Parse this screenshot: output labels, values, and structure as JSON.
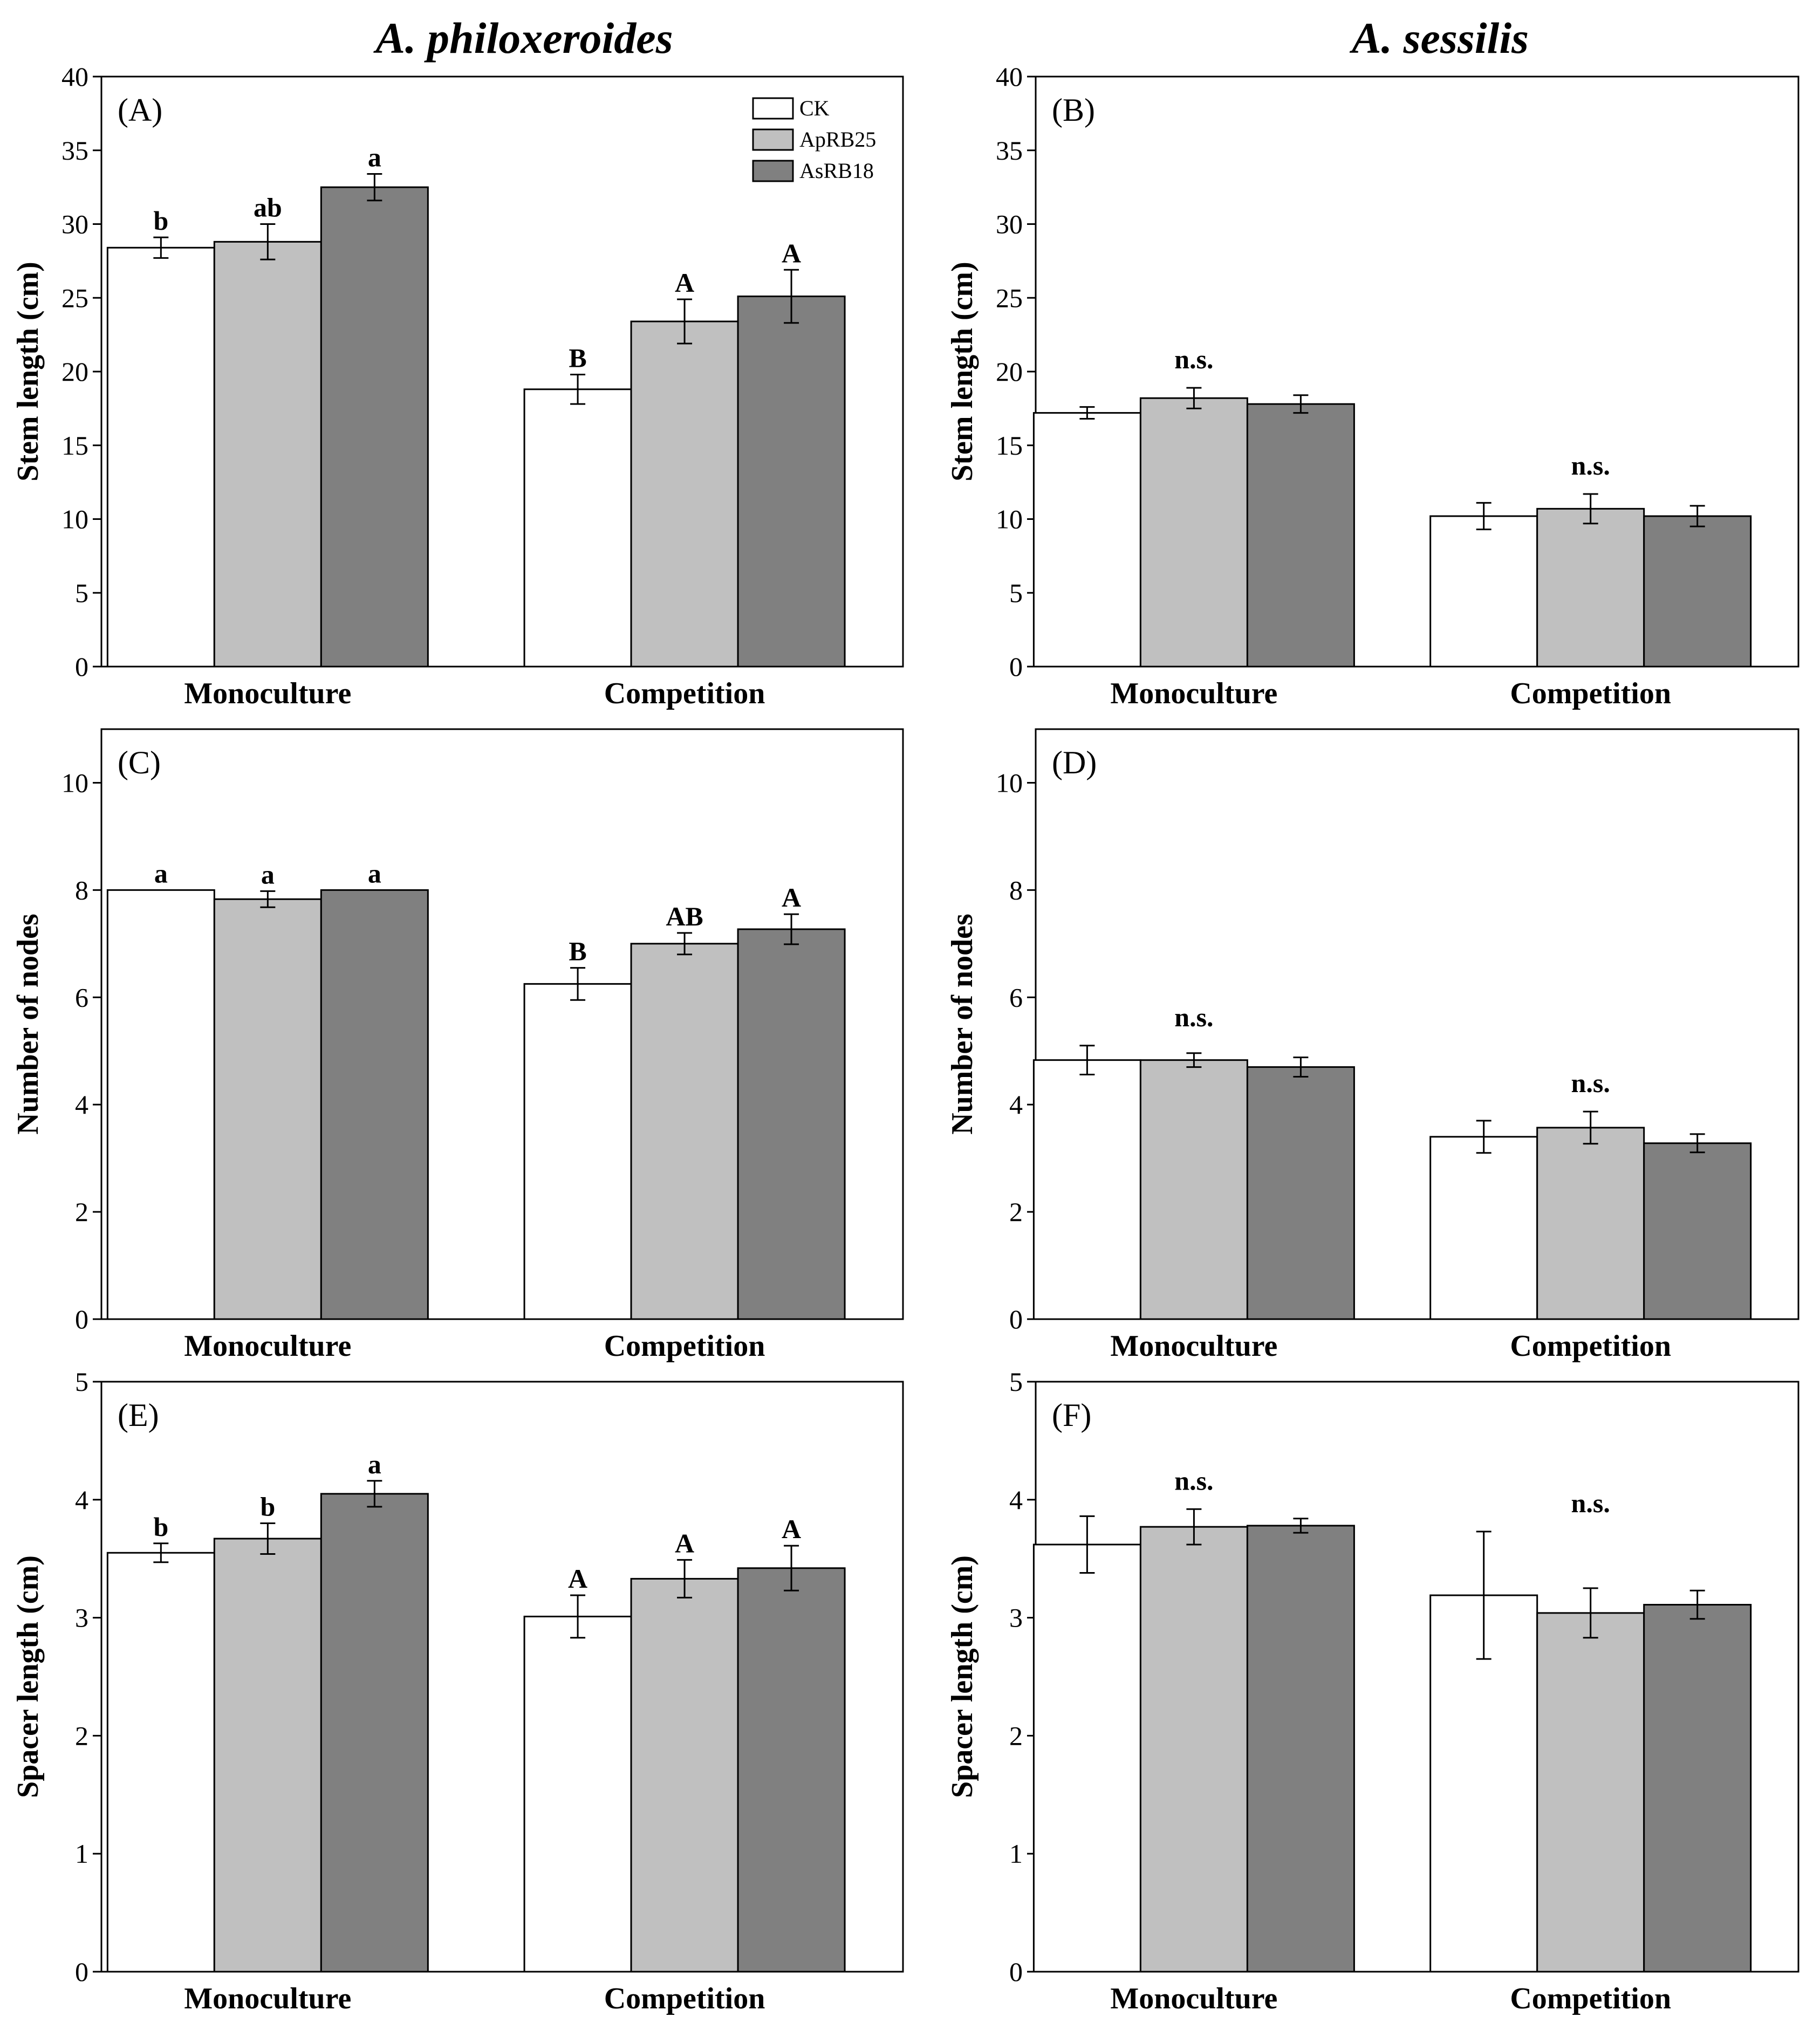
{
  "column_titles": [
    "A. philoxeroides",
    "A. sessilis"
  ],
  "legend": [
    {
      "label": "CK",
      "color": "#ffffff"
    },
    {
      "label": "ApRB25",
      "color": "#c0c0c0"
    },
    {
      "label": "AsRB18",
      "color": "#808080"
    }
  ],
  "chart_data": [
    {
      "panel": "(A)",
      "type": "bar",
      "ylabel": "Stem length (cm)",
      "ylim": [
        0,
        40
      ],
      "ytick_step": 5,
      "yticks": [
        0,
        5,
        10,
        15,
        20,
        25,
        30,
        35,
        40
      ],
      "categories": [
        "Monoculture",
        "Competition"
      ],
      "series": [
        {
          "name": "CK",
          "values": [
            28.4,
            18.8
          ],
          "errors": [
            0.7,
            1.0
          ],
          "sig": [
            "b",
            "B"
          ]
        },
        {
          "name": "ApRB25",
          "values": [
            28.8,
            23.4
          ],
          "errors": [
            1.2,
            1.5
          ],
          "sig": [
            "ab",
            "A"
          ]
        },
        {
          "name": "AsRB18",
          "values": [
            32.5,
            25.1
          ],
          "errors": [
            0.9,
            1.8
          ],
          "sig": [
            "a",
            "A"
          ]
        }
      ],
      "group_sig": []
    },
    {
      "panel": "(B)",
      "type": "bar",
      "ylabel": "Stem length (cm)",
      "ylim": [
        0,
        40
      ],
      "ytick_step": 5,
      "yticks": [
        0,
        5,
        10,
        15,
        20,
        25,
        30,
        35,
        40
      ],
      "categories": [
        "Monoculture",
        "Competition"
      ],
      "series": [
        {
          "name": "CK",
          "values": [
            17.2,
            10.2
          ],
          "errors": [
            0.4,
            0.9
          ]
        },
        {
          "name": "ApRB25",
          "values": [
            18.2,
            10.7
          ],
          "errors": [
            0.7,
            1.0
          ]
        },
        {
          "name": "AsRB18",
          "values": [
            17.8,
            10.2
          ],
          "errors": [
            0.6,
            0.7
          ]
        }
      ],
      "group_sig": [
        "n.s.",
        "n.s."
      ]
    },
    {
      "panel": "(C)",
      "type": "bar",
      "ylabel": "Number of nodes",
      "ylim": [
        0,
        11
      ],
      "ytick_step": 2,
      "yticks": [
        0,
        2,
        4,
        6,
        8,
        10
      ],
      "categories": [
        "Monoculture",
        "Competition"
      ],
      "series": [
        {
          "name": "CK",
          "values": [
            8.0,
            6.25
          ],
          "errors": [
            0,
            0.3
          ],
          "sig": [
            "a",
            "B"
          ]
        },
        {
          "name": "ApRB25",
          "values": [
            7.83,
            7.0
          ],
          "errors": [
            0.15,
            0.2
          ],
          "sig": [
            "a",
            "AB"
          ]
        },
        {
          "name": "AsRB18",
          "values": [
            8.0,
            7.27
          ],
          "errors": [
            0,
            0.28
          ],
          "sig": [
            "a",
            "A"
          ]
        }
      ],
      "group_sig": []
    },
    {
      "panel": "(D)",
      "type": "bar",
      "ylabel": "Number of nodes",
      "ylim": [
        0,
        11
      ],
      "ytick_step": 2,
      "yticks": [
        0,
        2,
        4,
        6,
        8,
        10
      ],
      "categories": [
        "Monoculture",
        "Competition"
      ],
      "series": [
        {
          "name": "CK",
          "values": [
            4.83,
            3.4
          ],
          "errors": [
            0.27,
            0.3
          ]
        },
        {
          "name": "ApRB25",
          "values": [
            4.83,
            3.57
          ],
          "errors": [
            0.13,
            0.3
          ]
        },
        {
          "name": "AsRB18",
          "values": [
            4.7,
            3.28
          ],
          "errors": [
            0.18,
            0.17
          ]
        }
      ],
      "group_sig": [
        "n.s.",
        "n.s."
      ]
    },
    {
      "panel": "(E)",
      "type": "bar",
      "ylabel": "Spacer length (cm)",
      "ylim": [
        0,
        5
      ],
      "ytick_step": 1,
      "yticks": [
        0,
        1,
        2,
        3,
        4,
        5
      ],
      "categories": [
        "Monoculture",
        "Competition"
      ],
      "series": [
        {
          "name": "CK",
          "values": [
            3.55,
            3.01
          ],
          "errors": [
            0.08,
            0.18
          ],
          "sig": [
            "b",
            "A"
          ]
        },
        {
          "name": "ApRB25",
          "values": [
            3.67,
            3.33
          ],
          "errors": [
            0.13,
            0.16
          ],
          "sig": [
            "b",
            "A"
          ]
        },
        {
          "name": "AsRB18",
          "values": [
            4.05,
            3.42
          ],
          "errors": [
            0.11,
            0.19
          ],
          "sig": [
            "a",
            "A"
          ]
        }
      ],
      "group_sig": []
    },
    {
      "panel": "(F)",
      "type": "bar",
      "ylabel": "Spacer length (cm)",
      "ylim": [
        0,
        5
      ],
      "ytick_step": 1,
      "yticks": [
        0,
        1,
        2,
        3,
        4,
        5
      ],
      "categories": [
        "Monoculture",
        "Competition"
      ],
      "series": [
        {
          "name": "CK",
          "values": [
            3.62,
            3.19
          ],
          "errors": [
            0.24,
            0.54
          ]
        },
        {
          "name": "ApRB25",
          "values": [
            3.77,
            3.04
          ],
          "errors": [
            0.15,
            0.21
          ]
        },
        {
          "name": "AsRB18",
          "values": [
            3.78,
            3.11
          ],
          "errors": [
            0.06,
            0.12
          ]
        }
      ],
      "group_sig": [
        "n.s.",
        "n.s."
      ]
    }
  ]
}
